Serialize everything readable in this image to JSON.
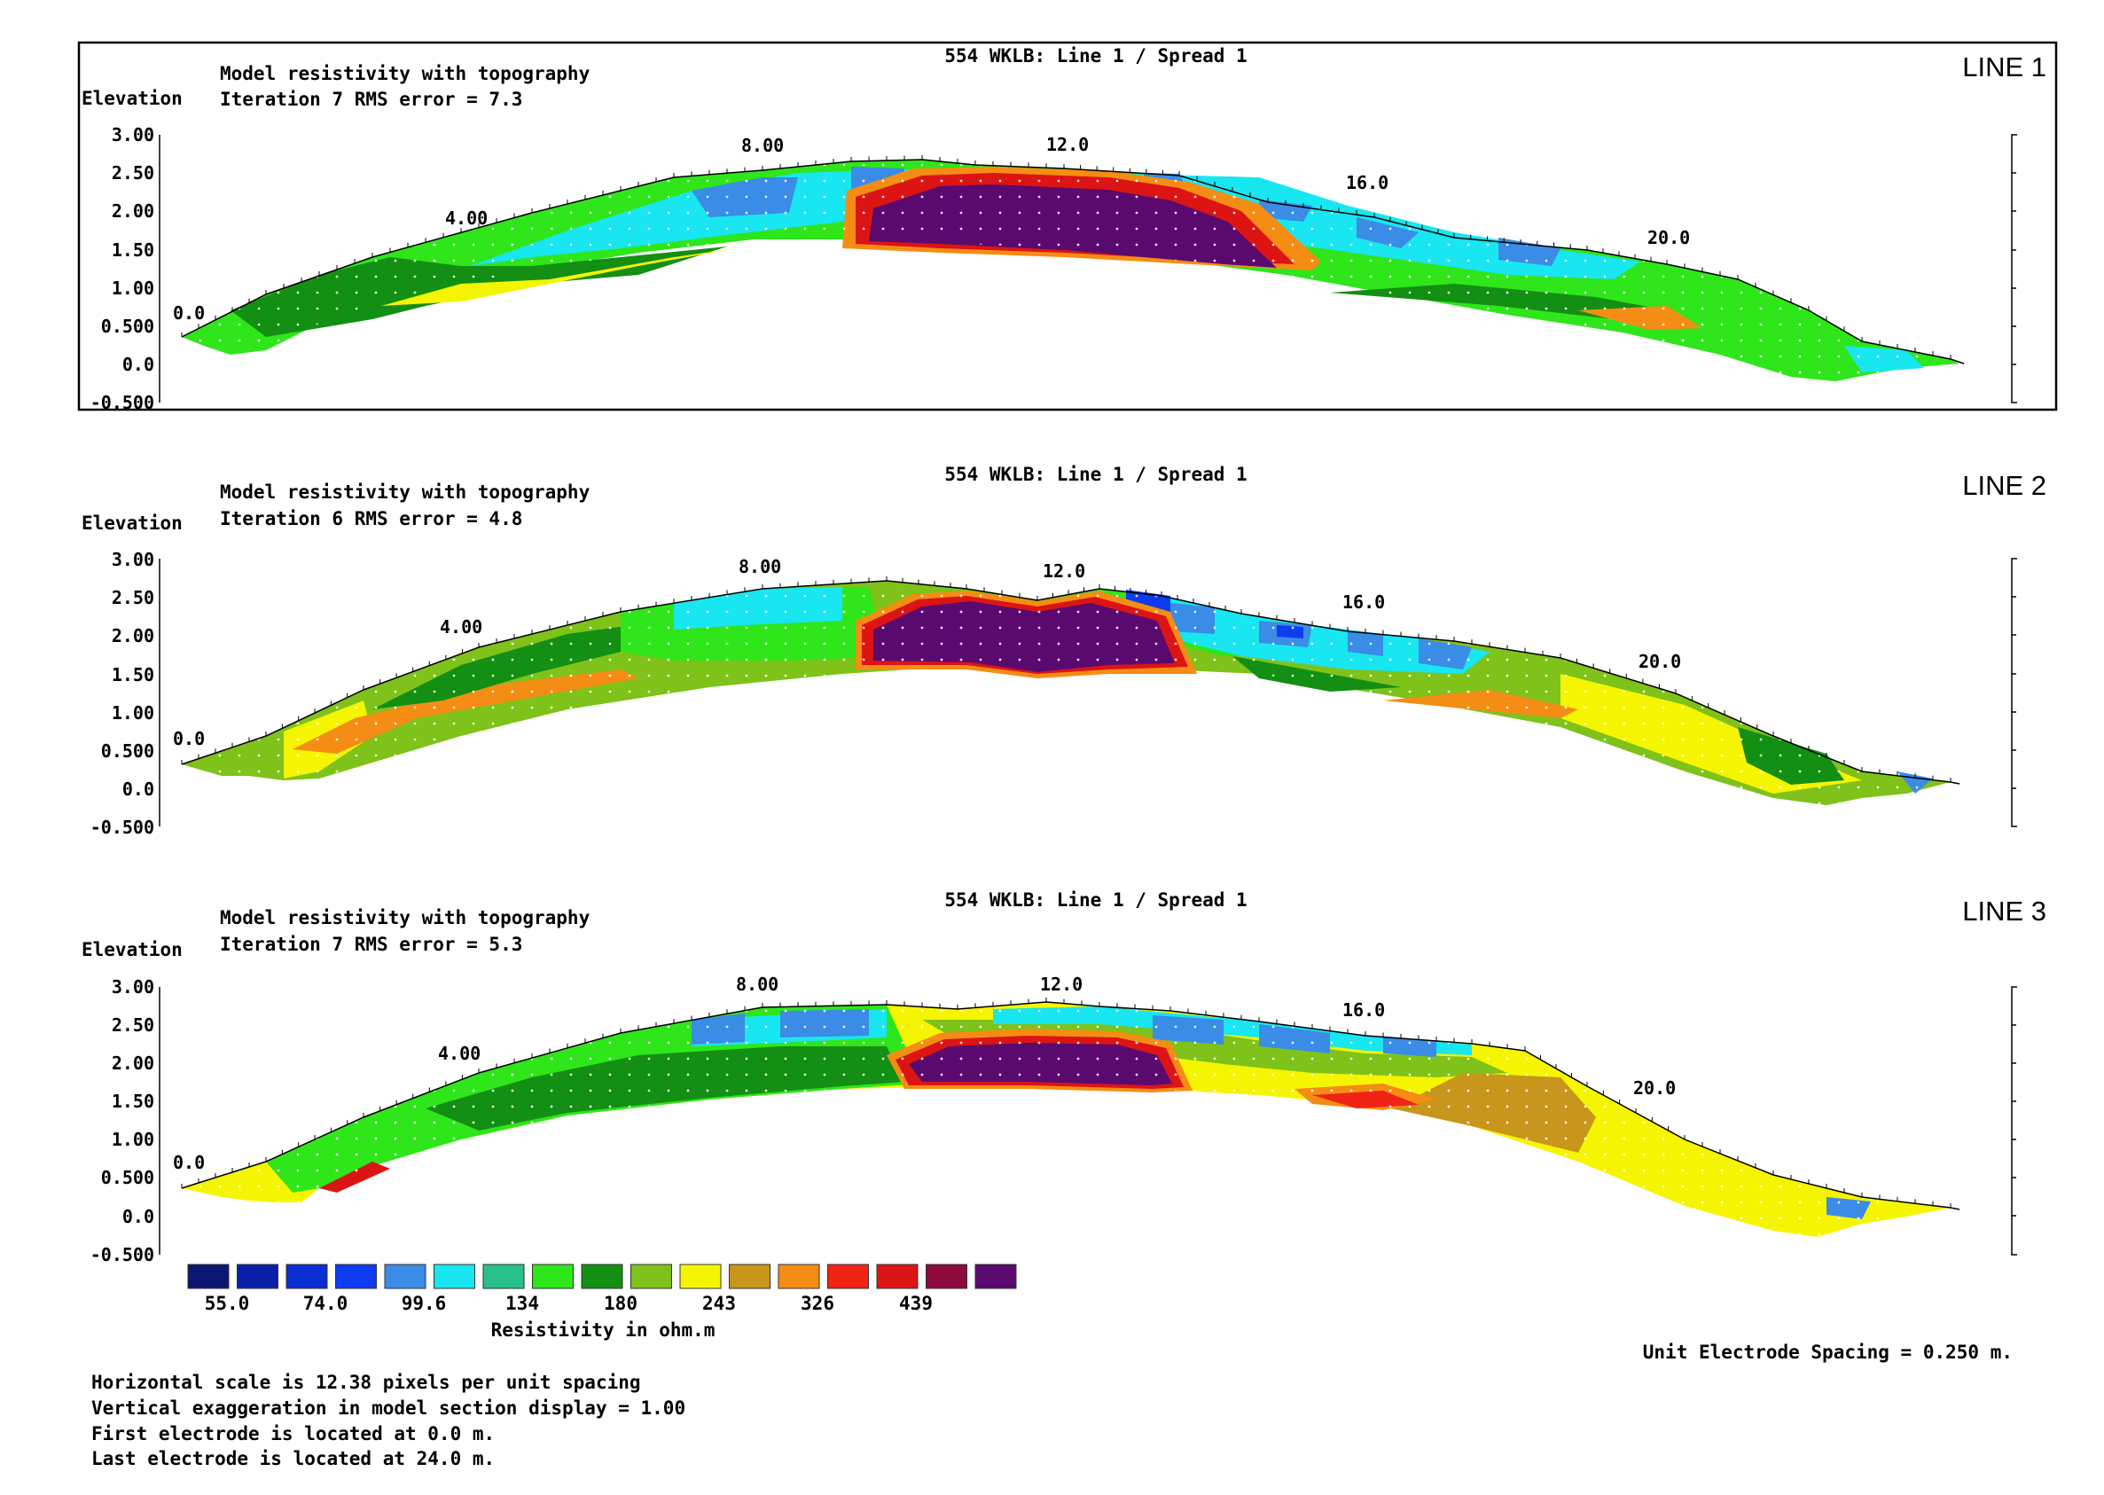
{
  "panels": [
    {
      "id": "line1",
      "title": "554 WKLB: Line 1 / Spread 1",
      "subtitle1": "Model resistivity with topography",
      "subtitle2": "Iteration 7 RMS error = 7.3",
      "label": "LINE 1",
      "ylabel": "Elevation",
      "y_ticks": [
        "3.00",
        "2.50",
        "2.00",
        "1.50",
        "1.00",
        "0.500",
        "0.0",
        "-0.500"
      ],
      "x_labels": [
        "0.0",
        "4.00",
        "8.00",
        "12.0",
        "16.0",
        "20.0"
      ]
    },
    {
      "id": "line2",
      "title": "554 WKLB: Line 1 / Spread 1",
      "subtitle1": "Model resistivity with topography",
      "subtitle2": "Iteration 6 RMS error = 4.8",
      "label": "LINE 2",
      "ylabel": "Elevation",
      "y_ticks": [
        "3.00",
        "2.50",
        "2.00",
        "1.50",
        "1.00",
        "0.500",
        "0.0",
        "-0.500"
      ],
      "x_labels": [
        "0.0",
        "4.00",
        "8.00",
        "12.0",
        "16.0",
        "20.0"
      ]
    },
    {
      "id": "line3",
      "title": "554 WKLB: Line 1 / Spread 1",
      "subtitle1": "Model resistivity with topography",
      "subtitle2": "Iteration 7 RMS error = 5.3",
      "label": "LINE 3",
      "ylabel": "Elevation",
      "y_ticks": [
        "3.00",
        "2.50",
        "2.00",
        "1.50",
        "1.00",
        "0.500",
        "0.0",
        "-0.500"
      ],
      "x_labels": [
        "0.0",
        "4.00",
        "8.00",
        "12.0",
        "16.0",
        "20.0"
      ]
    }
  ],
  "legend": {
    "colors": [
      "#0c1673",
      "#0a1fa8",
      "#0a2ed2",
      "#0f3cf0",
      "#3a8ce6",
      "#18e6f0",
      "#26c28a",
      "#2ee61a",
      "#138f13",
      "#7ec21a",
      "#f5f500",
      "#c8961a",
      "#f58c14",
      "#f02314",
      "#dc1414",
      "#8c0a3c",
      "#5a0a6e"
    ],
    "labels": [
      "55.0",
      "74.0",
      "99.6",
      "134",
      "180",
      "243",
      "326",
      "439"
    ],
    "title": "Resistivity in ohm.m"
  },
  "unit_spacing": "Unit Electrode Spacing = 0.250 m.",
  "notes": [
    "Horizontal scale is 12.38 pixels per unit spacing",
    "Vertical exaggeration in model section display = 1.00",
    "First electrode is located at 0.0  m.",
    "Last electrode is located at 24.0 m."
  ],
  "chart_data": [
    {
      "type": "heatmap",
      "title": "554 WKLB: Line 1 / Spread 1",
      "subtitle": "Model resistivity with topography — Iteration 7 RMS error = 7.3",
      "ylabel": "Elevation",
      "ylim": [
        -0.5,
        3.0
      ],
      "xlim": [
        0,
        24
      ],
      "x_ticks": [
        0,
        4,
        8,
        12,
        16,
        20
      ],
      "topography": {
        "x": [
          0,
          2,
          4,
          6,
          8,
          10,
          12,
          14,
          16,
          18,
          20,
          22,
          24
        ],
        "elevation": [
          0.35,
          1.1,
          1.5,
          2.1,
          2.6,
          2.7,
          2.6,
          2.45,
          1.95,
          1.55,
          1.35,
          0.6,
          0.05
        ]
      },
      "bodies": [
        {
          "description": "high resistivity core",
          "x": [
            9.2,
            15.2
          ],
          "elev": [
            1.5,
            2.6
          ],
          "resistivity_class": "> 439"
        },
        {
          "description": "near-surface low resistivity",
          "x": [
            6.5,
            18.5
          ],
          "elev": [
            1.6,
            2.6
          ],
          "resistivity_class": "99.6-134"
        }
      ]
    },
    {
      "type": "heatmap",
      "title": "554 WKLB: Line 1 / Spread 1",
      "subtitle": "Model resistivity with topography — Iteration 6 RMS error = 4.8",
      "ylabel": "Elevation",
      "ylim": [
        -0.5,
        3.0
      ],
      "xlim": [
        0,
        24
      ],
      "x_ticks": [
        0,
        4,
        8,
        12,
        16,
        20
      ],
      "topography": {
        "x": [
          0,
          2,
          4,
          6,
          8,
          10,
          12,
          14,
          16,
          18,
          20,
          22,
          24
        ],
        "elevation": [
          0.35,
          0.9,
          1.9,
          2.3,
          2.55,
          2.7,
          2.45,
          2.4,
          2.0,
          1.9,
          1.35,
          0.6,
          0.1
        ]
      },
      "bodies": [
        {
          "description": "high resistivity core",
          "x": [
            9.0,
            13.5
          ],
          "elev": [
            1.6,
            2.6
          ],
          "resistivity_class": "> 439"
        },
        {
          "description": "near-surface low resistivity",
          "x": [
            12.5,
            18.5
          ],
          "elev": [
            1.7,
            2.5
          ],
          "resistivity_class": "74.0-99.6"
        }
      ]
    },
    {
      "type": "heatmap",
      "title": "554 WKLB: Line 1 / Spread 1",
      "subtitle": "Model resistivity with topography — Iteration 7 RMS error = 5.3",
      "ylabel": "Elevation",
      "ylim": [
        -0.5,
        3.0
      ],
      "xlim": [
        0,
        24
      ],
      "x_ticks": [
        0,
        4,
        8,
        12,
        16,
        20
      ],
      "topography": {
        "x": [
          0,
          2,
          4,
          6,
          8,
          10,
          12,
          14,
          16,
          18,
          20,
          22,
          24
        ],
        "elevation": [
          0.35,
          1.0,
          1.9,
          2.3,
          2.6,
          2.75,
          2.7,
          2.65,
          2.3,
          2.2,
          1.5,
          0.6,
          0.1
        ]
      },
      "bodies": [
        {
          "description": "high resistivity core",
          "x": [
            9.3,
            13.5
          ],
          "elev": [
            1.7,
            2.4
          ],
          "resistivity_class": "> 439"
        },
        {
          "description": "moderate resistivity zone",
          "x": [
            14,
            20
          ],
          "elev": [
            1.3,
            2.0
          ],
          "resistivity_class": "243-326"
        }
      ]
    }
  ]
}
